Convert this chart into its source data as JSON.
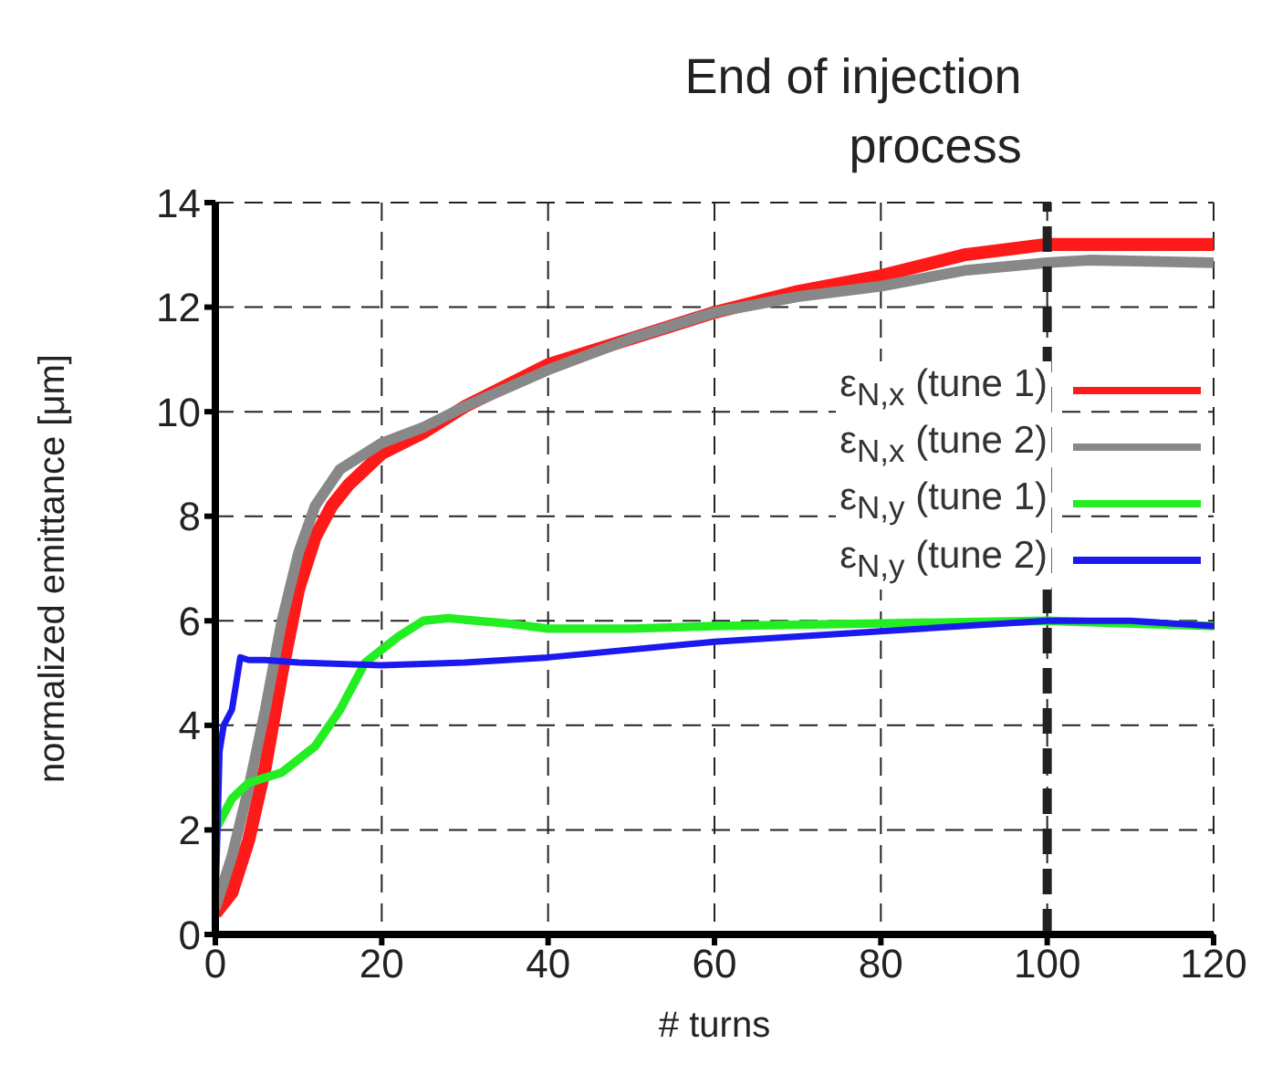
{
  "chart_data": {
    "type": "line",
    "xlabel": "# turns",
    "ylabel": "normalized emittance [μm]",
    "xlim": [
      0,
      120
    ],
    "xticks": [
      0,
      20,
      40,
      60,
      80,
      100,
      120
    ],
    "ylim": [
      0,
      14
    ],
    "yticks": [
      0,
      2,
      4,
      6,
      8,
      10,
      12,
      14
    ],
    "grid": true,
    "legend": "right",
    "marker": "none",
    "line_style": "solid",
    "ref_lines": [
      {
        "axis": "x",
        "value": 100,
        "label": "End of injection process",
        "color": "#222222",
        "line_style": "dashed"
      }
    ],
    "series": [
      {
        "name": "ε$_{N,x}$ (tune 1)",
        "color": "#ff1a1a",
        "x": [
          0,
          2,
          4,
          6,
          8,
          10,
          12,
          14,
          16,
          20,
          25,
          30,
          40,
          50,
          60,
          70,
          80,
          90,
          100,
          120
        ],
        "values": [
          0.4,
          0.8,
          1.8,
          3.2,
          5,
          6.6,
          7.6,
          8.2,
          8.6,
          9.2,
          9.6,
          10.1,
          10.9,
          11.4,
          11.9,
          12.3,
          12.6,
          13.0,
          13.2,
          13.2
        ]
      },
      {
        "name": "ε$_{N,x}$ (tune 2)",
        "color": "#888888",
        "x": [
          0,
          2,
          4,
          6,
          8,
          10,
          12,
          15,
          20,
          25,
          30,
          40,
          50,
          60,
          70,
          80,
          90,
          100,
          105,
          120
        ],
        "values": [
          0.5,
          1.5,
          2.8,
          4.3,
          6,
          7.3,
          8.2,
          8.9,
          9.4,
          9.7,
          10.1,
          10.8,
          11.4,
          11.9,
          12.2,
          12.4,
          12.7,
          12.85,
          12.9,
          12.85
        ]
      },
      {
        "name": "ε$_{N,y}$ (tune 1)",
        "color": "#22ee22",
        "x": [
          0,
          2,
          4,
          8,
          12,
          15,
          18,
          22,
          25,
          28,
          35,
          40,
          50,
          60,
          80,
          100,
          120
        ],
        "values": [
          2.0,
          2.6,
          2.9,
          3.1,
          3.6,
          4.3,
          5.2,
          5.7,
          6.0,
          6.05,
          5.95,
          5.85,
          5.85,
          5.9,
          5.95,
          6.0,
          5.9
        ]
      },
      {
        "name": "ε$_{N,y}$ (tune 2)",
        "color": "#1a1aee",
        "x": [
          0,
          0.5,
          1,
          2,
          3,
          4,
          6,
          10,
          20,
          30,
          40,
          60,
          80,
          100,
          110,
          120
        ],
        "values": [
          0.5,
          3.5,
          4.0,
          4.3,
          5.3,
          5.25,
          5.25,
          5.2,
          5.15,
          5.2,
          5.3,
          5.6,
          5.8,
          6.0,
          6.0,
          5.9
        ]
      }
    ]
  }
}
